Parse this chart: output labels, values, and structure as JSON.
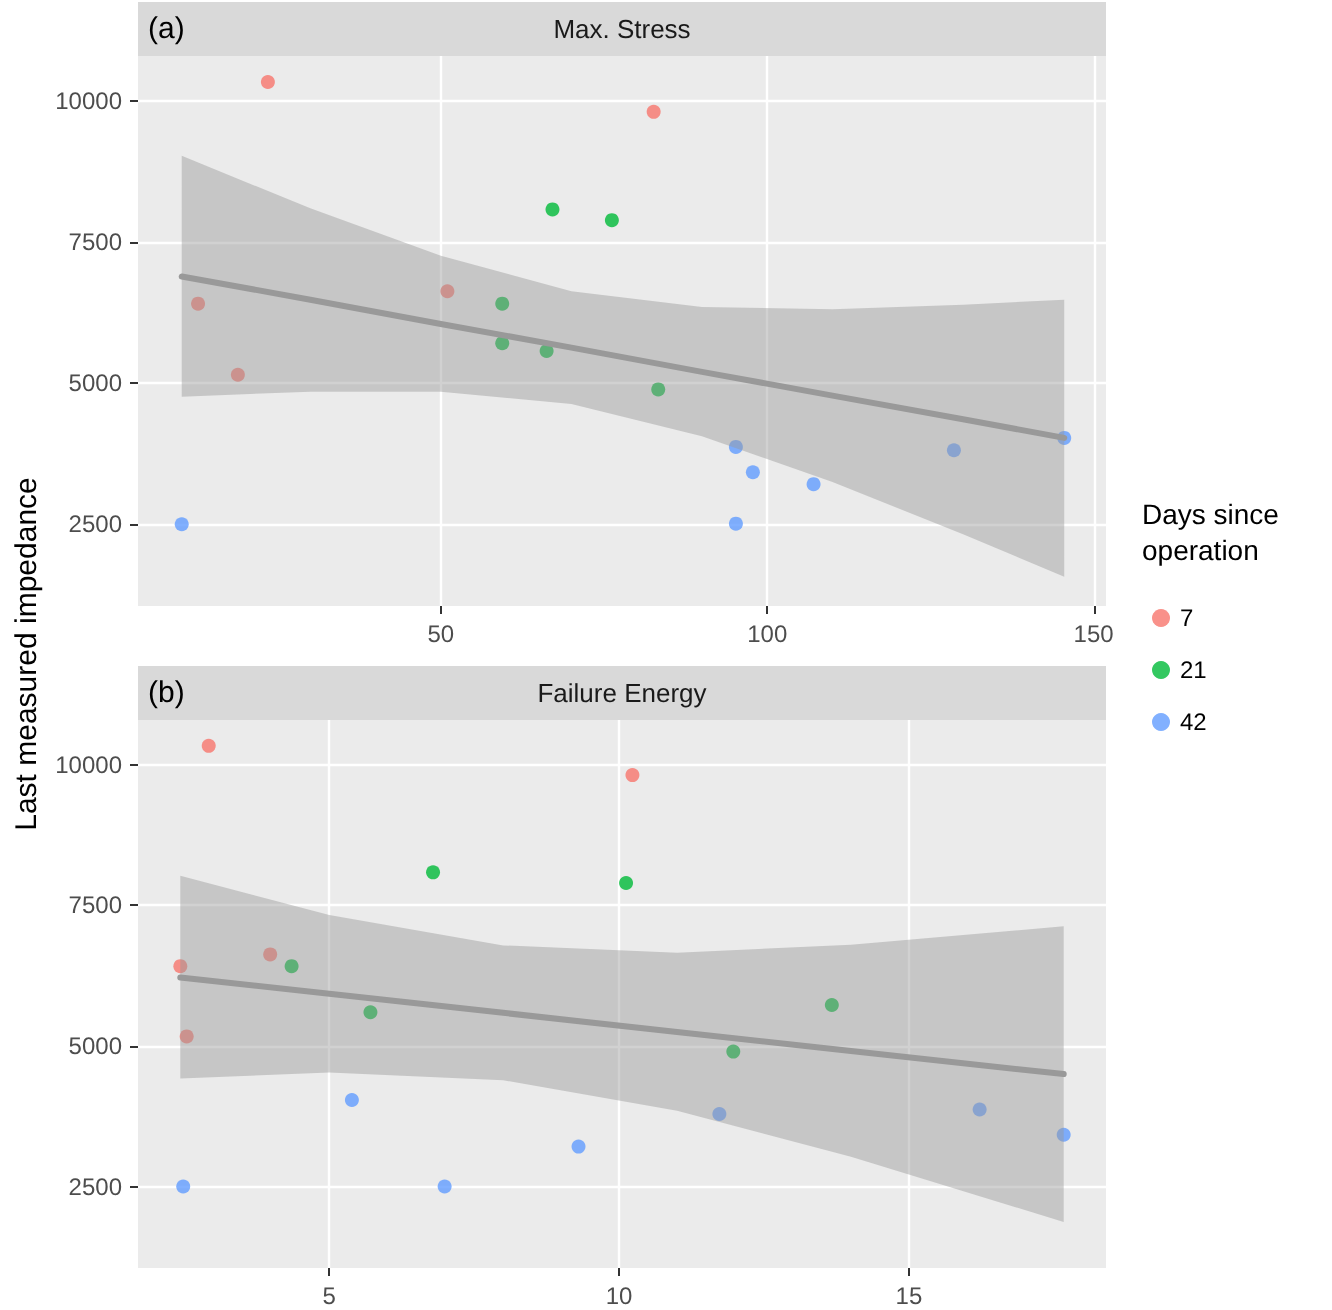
{
  "chart_data": [
    {
      "type": "scatter",
      "title": "Max. Stress",
      "annotations": [
        "(a)"
      ],
      "ylabel": "Last measured impedance",
      "legend_title": "Days since operation",
      "legend": "right",
      "marker": "circle",
      "grid": true,
      "xlim": [
        3.6,
        151.9
      ],
      "xticks": [
        50,
        100,
        150
      ],
      "ylim": [
        1050,
        10800
      ],
      "yticks": [
        2500,
        5000,
        7500,
        10000
      ],
      "series": [
        {
          "name": "7",
          "color": "#f8766d",
          "x": [
            23.5,
            82.6,
            12.8,
            18.9,
            51.0
          ],
          "values": [
            10340,
            9810,
            6410,
            5150,
            6630
          ]
        },
        {
          "name": "21",
          "color": "#00ba38",
          "x": [
            67.1,
            76.2,
            59.4,
            59.4,
            66.2,
            83.3
          ],
          "values": [
            8080,
            7890,
            6410,
            5710,
            5570,
            4890
          ]
        },
        {
          "name": "42",
          "color": "#619cff",
          "x": [
            10.3,
            95.2,
            97.8,
            107.1,
            95.2,
            128.6,
            145.5
          ],
          "values": [
            2500,
            3870,
            3420,
            3210,
            2510,
            3810,
            4030
          ]
        },
        {
          "type": "line",
          "marker": "none",
          "color": "#999999",
          "x": [
            10.3,
            30,
            50,
            70,
            90,
            110,
            130,
            145.5
          ],
          "values": [
            6890,
            6480,
            6050,
            5630,
            5200,
            4780,
            4360,
            4030
          ],
          "lower": [
            4760,
            4850,
            4850,
            4630,
            4060,
            3250,
            2320,
            1570
          ],
          "upper": [
            9030,
            8100,
            7260,
            6630,
            6350,
            6310,
            6390,
            6480
          ]
        }
      ]
    },
    {
      "type": "scatter",
      "title": "Failure Energy",
      "annotations": [
        "(b)"
      ],
      "marker": "circle",
      "grid": true,
      "xlim": [
        1.7,
        18.4
      ],
      "xticks": [
        5,
        10,
        15
      ],
      "ylim": [
        1050,
        10800
      ],
      "yticks": [
        2500,
        5000,
        7500,
        10000
      ],
      "series": [
        {
          "name": "7",
          "color": "#f8766d",
          "x": [
            2.92,
            10.23,
            2.43,
            2.54,
            3.98
          ],
          "values": [
            10340,
            9820,
            6420,
            5170,
            6630
          ]
        },
        {
          "name": "21",
          "color": "#00ba38",
          "x": [
            6.79,
            10.12,
            4.35,
            5.71,
            13.67,
            11.97
          ],
          "values": [
            8090,
            7900,
            6420,
            5600,
            5730,
            4900
          ]
        },
        {
          "name": "42",
          "color": "#619cff",
          "x": [
            2.48,
            5.39,
            6.99,
            9.3,
            11.73,
            16.22,
            17.67
          ],
          "values": [
            2500,
            4040,
            2500,
            3210,
            3790,
            3870,
            3420
          ]
        },
        {
          "type": "line",
          "marker": "none",
          "color": "#999999",
          "x": [
            2.43,
            5,
            8,
            11,
            14,
            17.67
          ],
          "values": [
            6220,
            5930,
            5590,
            5250,
            4910,
            4500
          ],
          "lower": [
            4420,
            4530,
            4390,
            3850,
            3030,
            1870
          ],
          "upper": [
            8030,
            7330,
            6790,
            6660,
            6800,
            7130
          ]
        }
      ]
    }
  ]
}
